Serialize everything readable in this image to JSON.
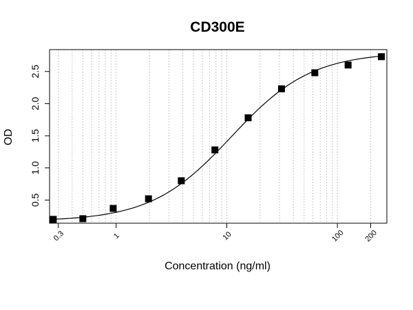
{
  "chart_data": {
    "type": "scatter",
    "title": "CD300E",
    "xlabel": "Concentration (ng/ml)",
    "ylabel": "OD",
    "x_scale": "log",
    "xlim": [
      0.25,
      280
    ],
    "ylim": [
      0.14,
      2.84
    ],
    "x_ticks": [
      {
        "value": 0.3,
        "label": "0.3"
      },
      {
        "value": 1,
        "label": "1"
      },
      {
        "value": 10,
        "label": "10"
      },
      {
        "value": 100,
        "label": "100"
      },
      {
        "value": 200,
        "label": "200"
      }
    ],
    "y_ticks": [
      {
        "value": 0.5,
        "label": "0.5"
      },
      {
        "value": 1.0,
        "label": "1.0"
      },
      {
        "value": 1.5,
        "label": "1.5"
      },
      {
        "value": 2.0,
        "label": "2.0"
      },
      {
        "value": 2.5,
        "label": "2.5"
      }
    ],
    "grid": "vertical dotted (log minor)",
    "series": [
      {
        "marker": "square",
        "color": "#000000",
        "points": [
          {
            "x": 0.27,
            "y": 0.2
          },
          {
            "x": 0.5,
            "y": 0.21
          },
          {
            "x": 0.94,
            "y": 0.37
          },
          {
            "x": 1.96,
            "y": 0.52
          },
          {
            "x": 3.88,
            "y": 0.8
          },
          {
            "x": 7.81,
            "y": 1.28
          },
          {
            "x": 15.6,
            "y": 1.78
          },
          {
            "x": 31.25,
            "y": 2.23
          },
          {
            "x": 62.5,
            "y": 2.48
          },
          {
            "x": 125,
            "y": 2.6
          },
          {
            "x": 250,
            "y": 2.73
          }
        ]
      }
    ],
    "fit_curve": {
      "model": "4PL",
      "bottom": 0.17,
      "top": 2.8,
      "ec50": 11.0,
      "hill": 1.2
    }
  }
}
